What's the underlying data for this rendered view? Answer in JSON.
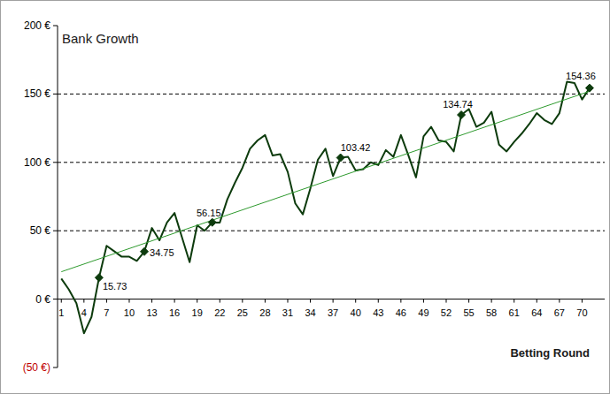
{
  "chart_data": {
    "type": "line",
    "title": "Bank Growth",
    "x_label": "Betting Round",
    "x": [
      1,
      2,
      3,
      4,
      5,
      6,
      7,
      8,
      9,
      10,
      11,
      12,
      13,
      14,
      15,
      16,
      17,
      18,
      19,
      20,
      21,
      22,
      23,
      24,
      25,
      26,
      27,
      28,
      29,
      30,
      31,
      32,
      33,
      34,
      35,
      36,
      37,
      38,
      39,
      40,
      41,
      42,
      43,
      44,
      45,
      46,
      47,
      48,
      49,
      50,
      51,
      52,
      53,
      54,
      55,
      56,
      57,
      58,
      59,
      60,
      61,
      62,
      63,
      64,
      65,
      66,
      67,
      68,
      69,
      70,
      71
    ],
    "series": [
      {
        "color": "#0d3b0d",
        "line_style": "solid",
        "values": [
          15,
          7,
          -3,
          -25,
          -13,
          15.73,
          39,
          35,
          31,
          31,
          28,
          34.75,
          52,
          43,
          56,
          63,
          45,
          27,
          54,
          50,
          56.15,
          56,
          73,
          85,
          96,
          110,
          116,
          120,
          105,
          106,
          93,
          70,
          62,
          81,
          102,
          110,
          90,
          103.42,
          104,
          94,
          95,
          100,
          98,
          109,
          104,
          120,
          105,
          89,
          119,
          126,
          116,
          115,
          108,
          134.74,
          139,
          126,
          129,
          137,
          113,
          108,
          115,
          121,
          128,
          136,
          131,
          128,
          136,
          159,
          158,
          146,
          154.36
        ]
      },
      {
        "color": "#2e9a2e",
        "line_style": "solid",
        "x": [
          1,
          71
        ],
        "values": [
          20,
          152
        ]
      }
    ],
    "annotations": [
      {
        "x": 6,
        "text": "15.73"
      },
      {
        "x": 12,
        "text": "34.75"
      },
      {
        "x": 21,
        "text": "56.15"
      },
      {
        "x": 38,
        "text": "103.42"
      },
      {
        "x": 54,
        "text": "134.74"
      },
      {
        "x": 71,
        "text": "154.36"
      }
    ],
    "xlim": [
      0.5,
      73
    ],
    "xticks": [
      1,
      4,
      7,
      10,
      13,
      16,
      19,
      22,
      25,
      28,
      31,
      34,
      37,
      40,
      43,
      46,
      49,
      52,
      55,
      58,
      61,
      64,
      67,
      70
    ],
    "ylim": [
      -50,
      200
    ],
    "yticks": [
      {
        "value": -50,
        "label": "(50 €)"
      },
      {
        "value": 0,
        "label": "0 €"
      },
      {
        "value": 50,
        "label": "50 €"
      },
      {
        "value": 100,
        "label": "100 €"
      },
      {
        "value": 150,
        "label": "150 €"
      },
      {
        "value": 200,
        "label": "200 €"
      }
    ],
    "grid": true
  }
}
